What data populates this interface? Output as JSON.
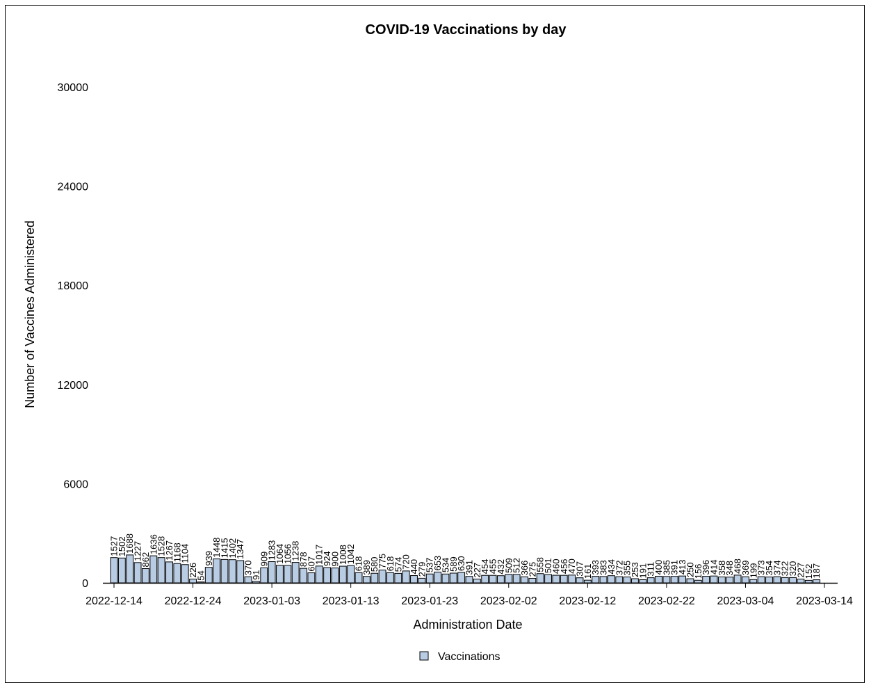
{
  "chart_data": {
    "type": "bar",
    "title": "COVID-19 Vaccinations by day",
    "xlabel": "Administration Date",
    "ylabel": "Number of Vaccines Administered",
    "ylim": [
      0,
      30000
    ],
    "yticks": [
      0,
      6000,
      12000,
      18000,
      24000,
      30000
    ],
    "xlim": [
      "2022-12-14",
      "2023-03-14"
    ],
    "xticks": [
      "2022-12-14",
      "2022-12-24",
      "2023-01-03",
      "2023-01-13",
      "2023-01-23",
      "2023-02-02",
      "2023-02-12",
      "2023-02-22",
      "2023-03-04",
      "2023-03-14"
    ],
    "grid": false,
    "legend": {
      "position": "bottom-center",
      "entries": [
        "Vaccinations"
      ]
    },
    "colors": {
      "bar_fill": "#b8cce4",
      "bar_stroke": "#000000"
    },
    "series": [
      {
        "name": "Vaccinations",
        "x": [
          "2022-12-14",
          "2022-12-15",
          "2022-12-16",
          "2022-12-17",
          "2022-12-18",
          "2022-12-19",
          "2022-12-20",
          "2022-12-21",
          "2022-12-22",
          "2022-12-23",
          "2022-12-24",
          "2022-12-25",
          "2022-12-26",
          "2022-12-27",
          "2022-12-28",
          "2022-12-29",
          "2022-12-30",
          "2022-12-31",
          "2023-01-01",
          "2023-01-02",
          "2023-01-03",
          "2023-01-04",
          "2023-01-05",
          "2023-01-06",
          "2023-01-07",
          "2023-01-08",
          "2023-01-09",
          "2023-01-10",
          "2023-01-11",
          "2023-01-12",
          "2023-01-13",
          "2023-01-14",
          "2023-01-15",
          "2023-01-16",
          "2023-01-17",
          "2023-01-18",
          "2023-01-19",
          "2023-01-20",
          "2023-01-21",
          "2023-01-22",
          "2023-01-23",
          "2023-01-24",
          "2023-01-25",
          "2023-01-26",
          "2023-01-27",
          "2023-01-28",
          "2023-01-29",
          "2023-01-30",
          "2023-01-31",
          "2023-02-01",
          "2023-02-02",
          "2023-02-03",
          "2023-02-04",
          "2023-02-05",
          "2023-02-06",
          "2023-02-07",
          "2023-02-08",
          "2023-02-09",
          "2023-02-10",
          "2023-02-11",
          "2023-02-12",
          "2023-02-13",
          "2023-02-14",
          "2023-02-15",
          "2023-02-16",
          "2023-02-17",
          "2023-02-18",
          "2023-02-19",
          "2023-02-20",
          "2023-02-21",
          "2023-02-22",
          "2023-02-23",
          "2023-02-24",
          "2023-02-25",
          "2023-02-26",
          "2023-02-27",
          "2023-02-28",
          "2023-03-01",
          "2023-03-02",
          "2023-03-03",
          "2023-03-04",
          "2023-03-05",
          "2023-03-06",
          "2023-03-07",
          "2023-03-08",
          "2023-03-09",
          "2023-03-10",
          "2023-03-11",
          "2023-03-12",
          "2023-03-13"
        ],
        "values": [
          1527,
          1502,
          1688,
          1227,
          862,
          1636,
          1528,
          1267,
          1168,
          1104,
          226,
          54,
          939,
          1448,
          1415,
          1402,
          1347,
          370,
          91,
          909,
          1283,
          1064,
          1056,
          1238,
          878,
          607,
          1017,
          924,
          900,
          1008,
          1042,
          618,
          389,
          580,
          775,
          618,
          574,
          720,
          440,
          279,
          537,
          653,
          534,
          589,
          630,
          391,
          227,
          454,
          455,
          432,
          509,
          512,
          366,
          275,
          558,
          501,
          460,
          456,
          470,
          307,
          161,
          393,
          383,
          434,
          372,
          355,
          253,
          191,
          311,
          400,
          385,
          391,
          413,
          250,
          156,
          396,
          414,
          358,
          348,
          468,
          369,
          199,
          373,
          354,
          374,
          322,
          320,
          227,
          152,
          187
        ]
      }
    ]
  }
}
